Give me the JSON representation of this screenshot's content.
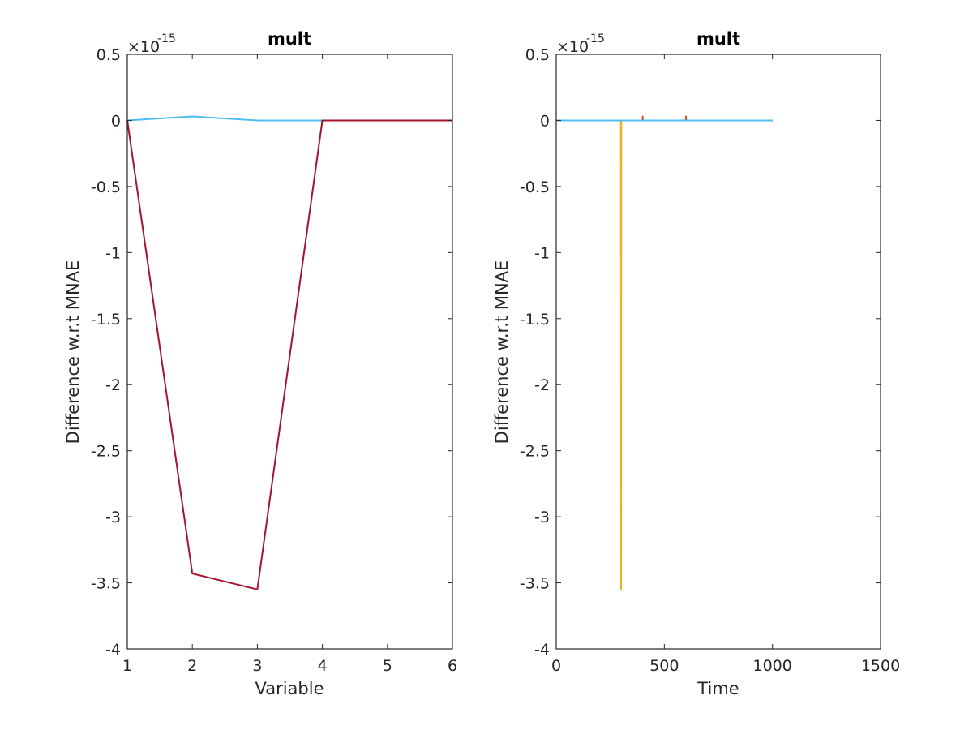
{
  "chart_data": [
    {
      "type": "line",
      "title": "mult",
      "xlabel": "Variable",
      "ylabel": "Difference w.r.t MNAE",
      "y_exponent_label": "×10",
      "y_exponent_power": "-15",
      "xlim": [
        1,
        6
      ],
      "ylim": [
        -4,
        0.5
      ],
      "xticks": [
        1,
        2,
        3,
        4,
        5,
        6
      ],
      "xtick_labels": [
        "1",
        "2",
        "3",
        "4",
        "5",
        "6"
      ],
      "yticks": [
        0.5,
        0,
        -0.5,
        -1,
        -1.5,
        -2,
        -2.5,
        -3,
        -3.5,
        -4
      ],
      "ytick_labels": [
        "0.5",
        "0",
        "-0.5",
        "-1",
        "-1.5",
        "-2",
        "-2.5",
        "-3",
        "-3.5",
        "-4"
      ],
      "grid": false,
      "series": [
        {
          "color": "#4DBEEE",
          "x": [
            1,
            2,
            3,
            4,
            5,
            6
          ],
          "y": [
            0,
            0.03,
            0,
            0,
            0,
            0
          ]
        },
        {
          "color": "#A2142F",
          "x": [
            1,
            2,
            3,
            4,
            5,
            6
          ],
          "y": [
            0,
            -3.43,
            -3.55,
            0,
            0,
            0
          ]
        }
      ]
    },
    {
      "type": "line",
      "title": "mult",
      "xlabel": "Time",
      "ylabel": "Difference w.r.t MNAE",
      "y_exponent_label": "×10",
      "y_exponent_power": "-15",
      "xlim": [
        0,
        1500
      ],
      "ylim": [
        -4,
        0.5
      ],
      "xticks": [
        0,
        500,
        1000,
        1500
      ],
      "xtick_labels": [
        "0",
        "500",
        "1000",
        "1500"
      ],
      "yticks": [
        0.5,
        0,
        -0.5,
        -1,
        -1.5,
        -2,
        -2.5,
        -3,
        -3.5,
        -4
      ],
      "ytick_labels": [
        "0.5",
        "0",
        "-0.5",
        "-1",
        "-1.5",
        "-2",
        "-2.5",
        "-3",
        "-3.5",
        "-4"
      ],
      "grid": false,
      "series": [
        {
          "color": "#0072BD",
          "x": [
            0,
            1000
          ],
          "y": [
            0,
            0
          ]
        },
        {
          "color": "#D95319",
          "x": [
            0,
            399,
            400,
            401,
            599,
            600,
            601,
            1000
          ],
          "y": [
            0,
            0,
            0.03,
            0,
            0,
            0.03,
            0,
            0
          ]
        },
        {
          "color": "#EDB120",
          "x": [
            0,
            299,
            300,
            301,
            1000
          ],
          "y": [
            0,
            0,
            -3.55,
            0,
            0
          ]
        },
        {
          "color": "#4DBEEE",
          "x": [
            0,
            1000
          ],
          "y": [
            0,
            0
          ]
        }
      ]
    }
  ]
}
